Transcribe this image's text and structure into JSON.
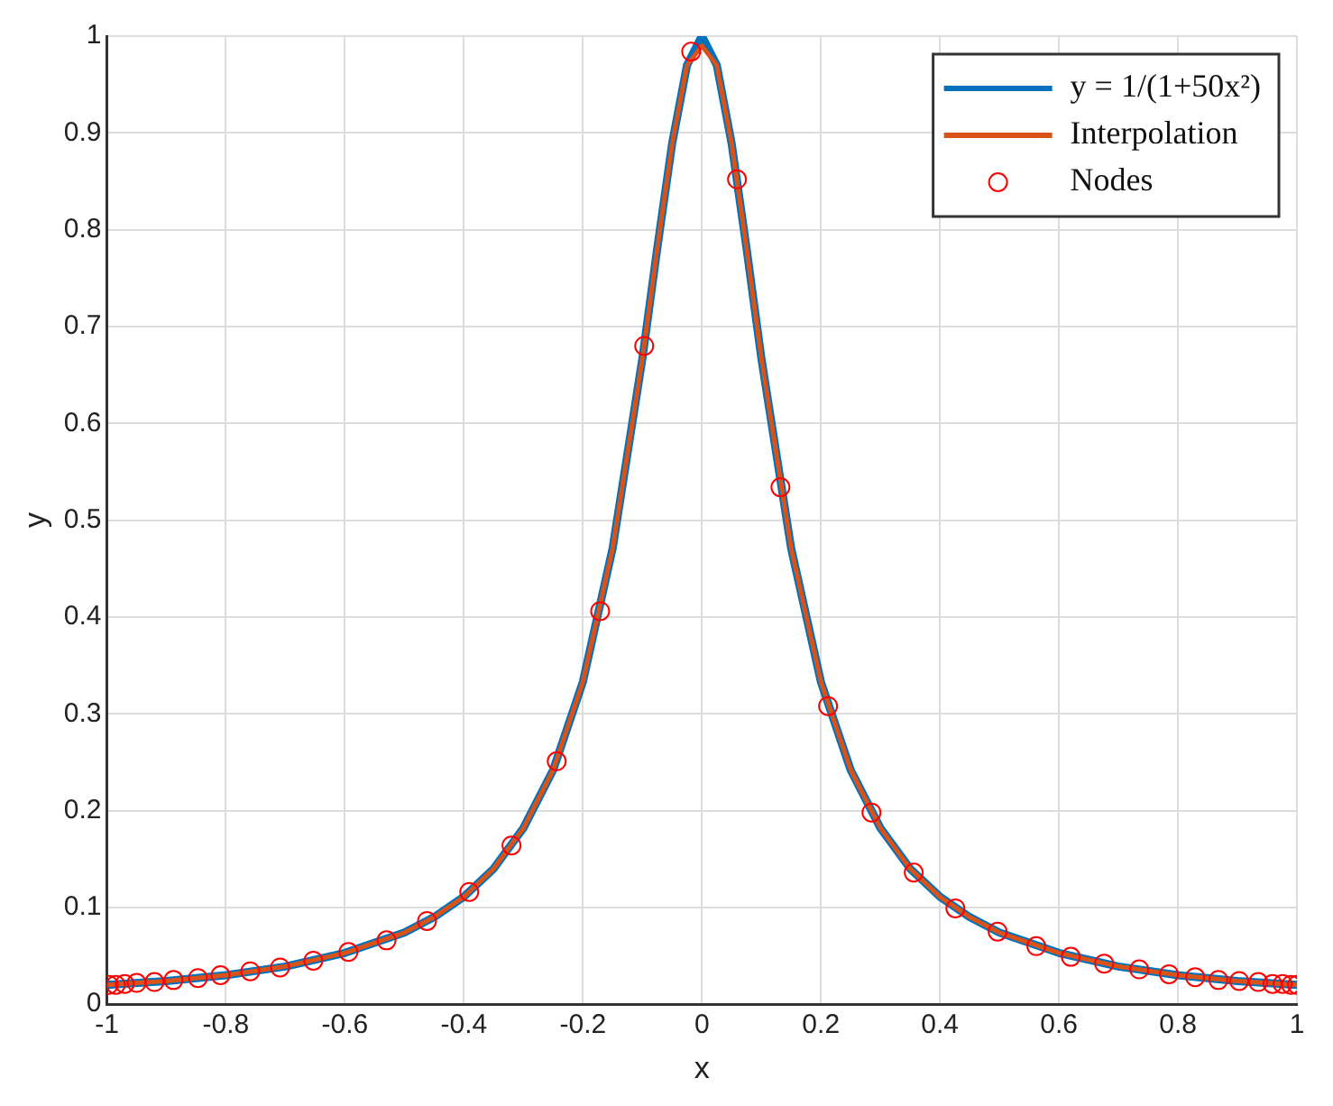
{
  "chart_data": {
    "type": "line",
    "xlabel": "x",
    "ylabel": "y",
    "xlim": [
      -1,
      1
    ],
    "ylim": [
      0,
      1
    ],
    "xticks": [
      -1,
      -0.8,
      -0.6,
      -0.4,
      -0.2,
      0,
      0.2,
      0.4,
      0.6,
      0.8,
      1
    ],
    "yticks": [
      0,
      0.1,
      0.2,
      0.3,
      0.4,
      0.5,
      0.6,
      0.7,
      0.8,
      0.9,
      1
    ],
    "grid": true,
    "legend": "top right",
    "line_style": "solid",
    "series": [
      {
        "name": "y = 1/(1+50x²)",
        "type": "line",
        "marker": "none",
        "color": "#0072bd",
        "x": [
          -1,
          -0.9,
          -0.8,
          -0.7,
          -0.6,
          -0.5,
          -0.45,
          -0.4,
          -0.35,
          -0.3,
          -0.25,
          -0.2,
          -0.15,
          -0.1,
          -0.075,
          -0.05,
          -0.025,
          0,
          0.025,
          0.05,
          0.075,
          0.1,
          0.15,
          0.2,
          0.25,
          0.3,
          0.35,
          0.4,
          0.45,
          0.5,
          0.6,
          0.7,
          0.8,
          0.9,
          1
        ],
        "values": [
          0.02,
          0.024,
          0.03,
          0.039,
          0.053,
          0.074,
          0.09,
          0.111,
          0.14,
          0.182,
          0.242,
          0.333,
          0.471,
          0.667,
          0.781,
          0.889,
          0.97,
          1,
          0.97,
          0.889,
          0.781,
          0.667,
          0.471,
          0.333,
          0.242,
          0.182,
          0.14,
          0.111,
          0.09,
          0.074,
          0.053,
          0.039,
          0.03,
          0.024,
          0.02
        ]
      },
      {
        "name": "Interpolation",
        "type": "line",
        "marker": "none",
        "color": "#d95319",
        "x": [
          -1,
          -0.9,
          -0.8,
          -0.7,
          -0.6,
          -0.5,
          -0.45,
          -0.4,
          -0.35,
          -0.3,
          -0.25,
          -0.2,
          -0.15,
          -0.1,
          -0.075,
          -0.05,
          -0.025,
          0,
          0.025,
          0.05,
          0.075,
          0.1,
          0.15,
          0.2,
          0.25,
          0.3,
          0.35,
          0.4,
          0.45,
          0.5,
          0.6,
          0.7,
          0.8,
          0.9,
          1
        ],
        "values": [
          0.02,
          0.024,
          0.03,
          0.039,
          0.053,
          0.074,
          0.09,
          0.111,
          0.14,
          0.182,
          0.242,
          0.333,
          0.471,
          0.667,
          0.781,
          0.889,
          0.97,
          0.99,
          0.97,
          0.889,
          0.781,
          0.667,
          0.471,
          0.333,
          0.242,
          0.182,
          0.14,
          0.111,
          0.09,
          0.074,
          0.053,
          0.039,
          0.03,
          0.024,
          0.02
        ]
      },
      {
        "name": "Nodes",
        "type": "scatter",
        "marker": "circle",
        "color": "#ff0000",
        "x": [
          -0.997,
          -0.985,
          -0.97,
          -0.95,
          -0.92,
          -0.888,
          -0.847,
          -0.809,
          -0.759,
          -0.709,
          -0.653,
          -0.594,
          -0.53,
          -0.462,
          -0.391,
          -0.32,
          -0.244,
          -0.171,
          -0.097,
          -0.018,
          0.059,
          0.132,
          0.212,
          0.285,
          0.356,
          0.426,
          0.497,
          0.562,
          0.62,
          0.676,
          0.735,
          0.785,
          0.829,
          0.868,
          0.903,
          0.935,
          0.959,
          0.976,
          0.99,
          1
        ],
        "values": [
          0.02,
          0.02,
          0.021,
          0.022,
          0.023,
          0.025,
          0.027,
          0.03,
          0.034,
          0.038,
          0.045,
          0.054,
          0.066,
          0.086,
          0.116,
          0.164,
          0.251,
          0.406,
          0.68,
          0.984,
          0.852,
          0.534,
          0.308,
          0.198,
          0.136,
          0.099,
          0.075,
          0.06,
          0.049,
          0.042,
          0.036,
          0.031,
          0.028,
          0.025,
          0.024,
          0.023,
          0.021,
          0.021,
          0.02,
          0.02
        ]
      }
    ]
  }
}
